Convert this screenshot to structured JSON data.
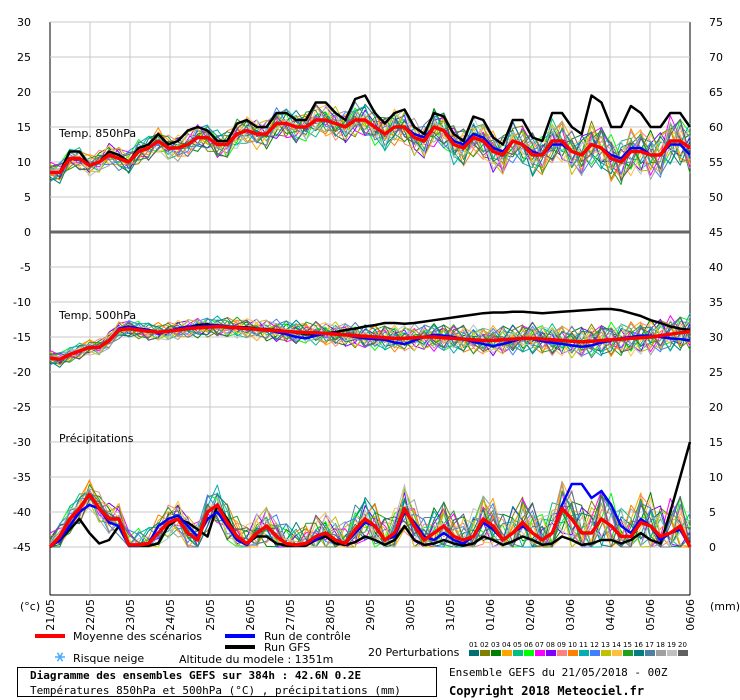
{
  "chart_data": {
    "type": "line",
    "title": "Diagramme des ensembles GEFS sur 384h : 42.6N 0.2E",
    "subtitle": "Températures 850hPa et 500hPa (°C) , précipitations (mm)",
    "ensemble_run": "Ensemble GEFS du 21/05/2018 - 00Z",
    "copyright": "Copyright 2018 Meteociel.fr",
    "altitude": "Altitude du modele : 1351m",
    "left_unit": "(°c)",
    "right_unit": "(mm)",
    "left_ticks": [
      30,
      25,
      20,
      15,
      10,
      5,
      0,
      -5,
      -10,
      -15,
      -20,
      -25,
      -30,
      -35,
      -40,
      -45
    ],
    "right_ticks_top": [
      75,
      70,
      65,
      60,
      55,
      50,
      45
    ],
    "right_ticks_bottom": [
      40,
      35,
      30,
      25,
      20,
      15,
      10,
      5,
      0
    ],
    "dates": [
      "21/05",
      "22/05",
      "23/05",
      "24/05",
      "25/05",
      "26/05",
      "27/05",
      "28/05",
      "29/05",
      "30/05",
      "31/05",
      "01/06",
      "02/06",
      "03/06",
      "04/06",
      "05/06",
      "06/06"
    ],
    "panel_labels": {
      "t850": "Temp. 850hPa",
      "t500": "Temp. 500hPa",
      "precip": "Précipitations"
    },
    "t850": {
      "mean": [
        8.5,
        8.5,
        10.5,
        10.5,
        9.5,
        10,
        11,
        10.5,
        10,
        11.5,
        12,
        13,
        12,
        12,
        12.5,
        13.5,
        13.5,
        12.5,
        12.5,
        14,
        14.5,
        14,
        14,
        15.5,
        15.5,
        15,
        15,
        16,
        16,
        15.5,
        15,
        16,
        16,
        15,
        14,
        15,
        15,
        13.5,
        13,
        15,
        14.5,
        12.5,
        12,
        13.5,
        13,
        11.5,
        11,
        13,
        12.5,
        11,
        11,
        13,
        13,
        11.5,
        11,
        12.5,
        12,
        10.5,
        10,
        11.5,
        11.5,
        11,
        11,
        13,
        13,
        12
      ],
      "control": [
        8.5,
        8.5,
        10.5,
        10.5,
        9.5,
        10,
        11,
        10.5,
        10,
        11.5,
        12,
        13,
        12,
        12,
        12.5,
        13.5,
        13.5,
        12.5,
        12.5,
        14,
        14.5,
        14,
        14,
        15.5,
        15.5,
        15,
        15,
        16,
        16,
        15.5,
        15,
        16,
        16,
        15,
        14,
        15,
        15,
        14,
        13.5,
        15,
        14.5,
        13,
        12.5,
        14,
        13.5,
        12,
        11.5,
        13,
        12.5,
        11.5,
        11,
        12.5,
        12.5,
        11.5,
        11,
        12.5,
        12,
        11,
        10.5,
        12,
        12,
        11,
        11,
        12.5,
        12.5,
        11
      ],
      "gfs": [
        8.5,
        8.5,
        11.5,
        11.5,
        9.5,
        10,
        11.5,
        11,
        10,
        12,
        12.5,
        14,
        12.5,
        13,
        14.5,
        15,
        14.5,
        13,
        13,
        15.5,
        16,
        15,
        15,
        17,
        17,
        16,
        16,
        18.5,
        18.5,
        17,
        16,
        19,
        19.5,
        17,
        15.5,
        17,
        17.5,
        15,
        14,
        17,
        16.5,
        14,
        13,
        16.5,
        16,
        13.5,
        12.5,
        16,
        16,
        13.5,
        13,
        17,
        17,
        15,
        14,
        19.5,
        18.5,
        15,
        15,
        18,
        17,
        15,
        15,
        17,
        17,
        15
      ]
    },
    "t500": {
      "mean": [
        -18,
        -18.2,
        -17.5,
        -17,
        -16.5,
        -16.5,
        -15.5,
        -14,
        -13.8,
        -14,
        -14.2,
        -14.3,
        -14.2,
        -14,
        -13.8,
        -13.7,
        -13.6,
        -13.5,
        -13.6,
        -13.7,
        -13.8,
        -13.9,
        -14,
        -14.1,
        -14.2,
        -14.3,
        -14.4,
        -14.4,
        -14.5,
        -14.6,
        -14.7,
        -14.8,
        -14.9,
        -15,
        -15.1,
        -15.2,
        -15.2,
        -15.1,
        -15,
        -15,
        -15.1,
        -15.2,
        -15.3,
        -15.4,
        -15.5,
        -15.5,
        -15.4,
        -15.3,
        -15.2,
        -15.2,
        -15.3,
        -15.4,
        -15.5,
        -15.6,
        -15.7,
        -15.6,
        -15.5,
        -15.4,
        -15.3,
        -15.2,
        -15.1,
        -15,
        -14.8,
        -14.6,
        -14.4,
        -14.2
      ],
      "control": [
        -18,
        -18.2,
        -17.5,
        -17,
        -16.5,
        -16.5,
        -15.5,
        -13.8,
        -13.5,
        -13.8,
        -14,
        -14.5,
        -14.2,
        -13.8,
        -13.5,
        -13.5,
        -13.4,
        -13.3,
        -13.5,
        -13.6,
        -13.7,
        -13.9,
        -14,
        -14.3,
        -14.6,
        -15,
        -15.2,
        -14.8,
        -14.5,
        -14.5,
        -14.7,
        -15,
        -15.2,
        -15.3,
        -15.4,
        -15.8,
        -16,
        -15.5,
        -15,
        -14.7,
        -14.8,
        -15,
        -15.3,
        -15.7,
        -16,
        -16.3,
        -16,
        -15.6,
        -15.2,
        -15.3,
        -15.6,
        -15.8,
        -16,
        -16.2,
        -16.4,
        -16.2,
        -15.8,
        -15.5,
        -15.2,
        -15,
        -14.8,
        -14.8,
        -15,
        -15.2,
        -15.3,
        -15.5
      ],
      "gfs": [
        -18,
        -18.2,
        -17.5,
        -17,
        -16.5,
        -16.5,
        -15.5,
        -14,
        -13.6,
        -13.8,
        -14,
        -14.3,
        -14.1,
        -13.9,
        -13.6,
        -13.3,
        -13.2,
        -13.4,
        -13.5,
        -13.6,
        -13.6,
        -13.8,
        -13.9,
        -14,
        -14.2,
        -14.4,
        -14.6,
        -14.6,
        -14.5,
        -14.3,
        -14,
        -13.8,
        -13.5,
        -13.3,
        -13,
        -13,
        -13.1,
        -13,
        -12.8,
        -12.6,
        -12.4,
        -12.2,
        -12,
        -11.8,
        -11.6,
        -11.5,
        -11.5,
        -11.4,
        -11.4,
        -11.5,
        -11.6,
        -11.5,
        -11.4,
        -11.3,
        -11.2,
        -11.1,
        -11,
        -11,
        -11.2,
        -11.6,
        -12,
        -12.6,
        -13,
        -13.5,
        -13.8,
        -14
      ]
    },
    "precip": {
      "mean": [
        0,
        1.5,
        4,
        5.5,
        7.5,
        5.5,
        4,
        4,
        0.3,
        0.3,
        0.5,
        2,
        3.5,
        4,
        2,
        1,
        5,
        6,
        3.5,
        1.5,
        0.5,
        2,
        3,
        1.5,
        0.5,
        0.3,
        0.5,
        1.5,
        2,
        1,
        0.5,
        2.5,
        4,
        3,
        1,
        2,
        5.5,
        3,
        1,
        2,
        3,
        1.5,
        1,
        1.5,
        4,
        3,
        1,
        2,
        3.5,
        2,
        1,
        2,
        5.5,
        4,
        2,
        2,
        4,
        3,
        1.5,
        1.5,
        3.5,
        3,
        1.5,
        2,
        3,
        0
      ],
      "control": [
        0,
        1,
        3,
        5,
        6,
        5.5,
        3.5,
        3,
        0.2,
        0.2,
        0.5,
        3,
        4,
        4.5,
        3,
        1.5,
        4,
        5,
        3,
        1,
        0.3,
        2,
        3,
        1.5,
        0.5,
        0.3,
        0.5,
        1,
        2,
        1,
        0.5,
        2,
        3.5,
        3,
        1,
        1.5,
        5,
        3.5,
        1.5,
        1,
        2,
        1,
        0.5,
        1.5,
        3.5,
        2.5,
        1,
        2,
        3,
        2,
        1,
        2,
        6,
        9,
        9,
        7,
        8,
        6,
        3,
        2,
        4,
        3,
        1,
        2,
        2.5,
        0
      ],
      "gfs": [
        0,
        1,
        2.5,
        4,
        2,
        0.5,
        1,
        3,
        0.2,
        0.2,
        0.2,
        0.5,
        3,
        4,
        3.5,
        2.5,
        1.5,
        6,
        4,
        1.5,
        0.5,
        1.5,
        1.5,
        0.5,
        0.2,
        0.2,
        0.2,
        1,
        1.5,
        0.5,
        0.3,
        0.7,
        1.5,
        1,
        0.3,
        1,
        3,
        1,
        0.3,
        0.5,
        1,
        0.5,
        0.2,
        0.5,
        1.5,
        1,
        0.3,
        0.8,
        1.5,
        1,
        0.3,
        0.5,
        1.5,
        1,
        0.3,
        0.5,
        1,
        1,
        0.5,
        1,
        2,
        1,
        0.5,
        5,
        10,
        15
      ]
    },
    "legend": {
      "mean": "Moyenne des scénarios",
      "control": "Run de contrôle",
      "gfs": "Run GFS",
      "snow": "Risque neige",
      "perturbations": "20 Perturbations",
      "mean_color": "#ff0000",
      "control_color": "#0000ff",
      "gfs_color": "#000000",
      "snow_color": "#44aaff"
    },
    "perturbation_labels": [
      "01",
      "02",
      "03",
      "04",
      "05",
      "06",
      "07",
      "08",
      "09",
      "10",
      "11",
      "12",
      "13",
      "14",
      "15",
      "16",
      "17",
      "18",
      "19",
      "20"
    ],
    "perturbation_colors": [
      "#007070",
      "#808000",
      "#008000",
      "#ffa500",
      "#00c080",
      "#00ff00",
      "#ff00ff",
      "#8000ff",
      "#ff8080",
      "#ff8000",
      "#00b0b0",
      "#4080ff",
      "#c0c000",
      "#ffc040",
      "#20a020",
      "#008080",
      "#5080a0",
      "#a0a0a0",
      "#c0c0c0",
      "#606060"
    ]
  }
}
